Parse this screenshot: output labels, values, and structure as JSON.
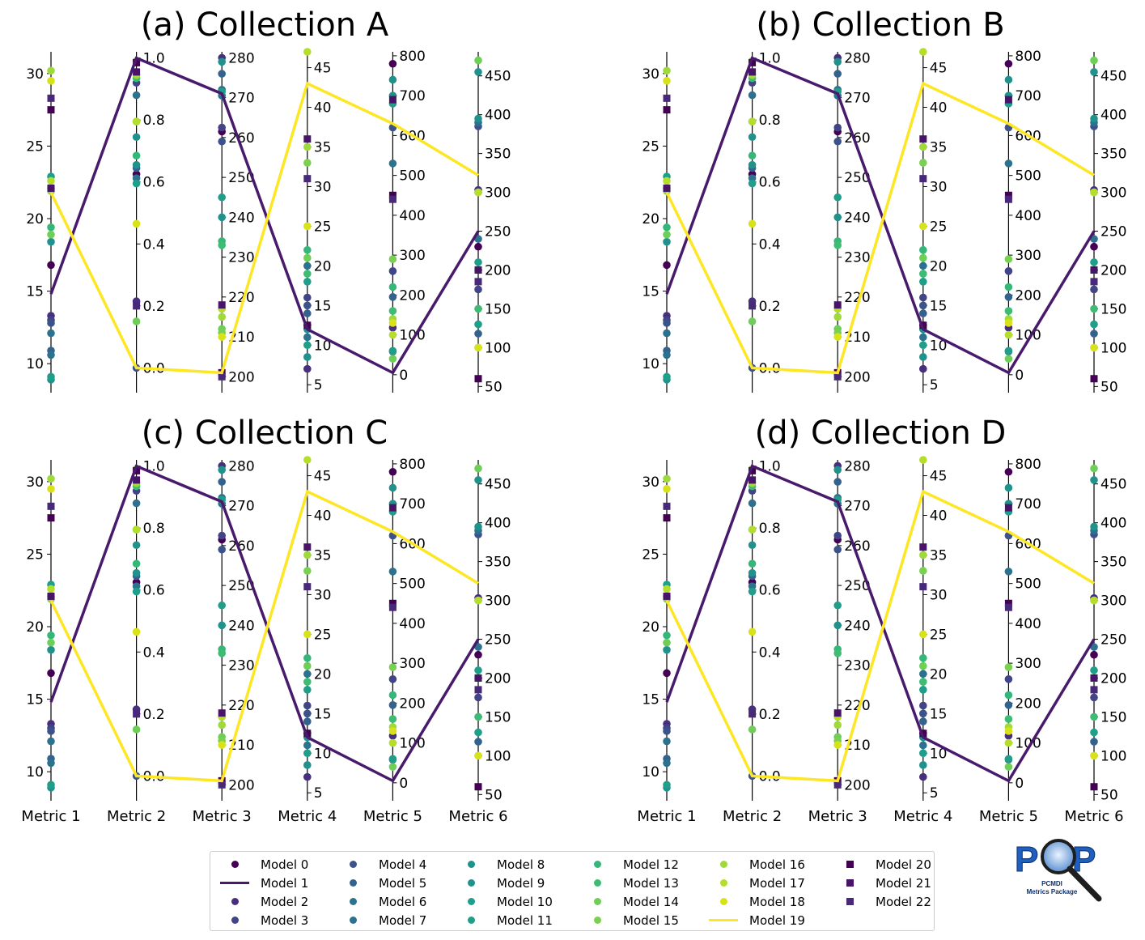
{
  "chart_data": {
    "type": "parallel_coordinates",
    "layout": "2x2 grid of panels",
    "metrics": [
      "Metric 1",
      "Metric 2",
      "Metric 3",
      "Metric 4",
      "Metric 5",
      "Metric 6"
    ],
    "axes": [
      {
        "metric": "Metric 1",
        "ylim": [
          8,
          31.5
        ],
        "ticks": [
          10,
          15,
          20,
          25,
          30
        ],
        "tick_side": "left"
      },
      {
        "metric": "Metric 2",
        "ylim": [
          -0.08,
          1.02
        ],
        "ticks": [
          0.0,
          0.2,
          0.4,
          0.6,
          0.8,
          1.0
        ],
        "tick_side": "right"
      },
      {
        "metric": "Metric 3",
        "ylim": [
          196,
          281.5
        ],
        "ticks": [
          200,
          210,
          220,
          230,
          240,
          250,
          260,
          270,
          280
        ],
        "tick_side": "right"
      },
      {
        "metric": "Metric 4",
        "ylim": [
          4,
          47
        ],
        "ticks": [
          5,
          10,
          15,
          20,
          25,
          30,
          35,
          40,
          45
        ],
        "tick_side": "right"
      },
      {
        "metric": "Metric 5",
        "ylim": [
          -45,
          810
        ],
        "ticks": [
          0,
          100,
          200,
          300,
          400,
          500,
          600,
          700,
          800
        ],
        "tick_side": "right"
      },
      {
        "metric": "Metric 6",
        "ylim": [
          42,
          481
        ],
        "ticks": [
          50,
          100,
          150,
          200,
          250,
          300,
          350,
          400,
          450
        ],
        "tick_side": "right"
      }
    ],
    "panels": [
      {
        "title": "(a) Collection A"
      },
      {
        "title": "(b) Collection B"
      },
      {
        "title": "(c) Collection C"
      },
      {
        "title": "(d) Collection D"
      }
    ],
    "series": [
      {
        "name": "Model 0",
        "marker": "circle",
        "color": "#440154",
        "values": [
          16.8,
          0.625,
          261.5,
          12.5,
          780,
          230
        ]
      },
      {
        "name": "Model 1",
        "marker": "line",
        "color": "#481a6c",
        "values": [
          14.8,
          1.0,
          271.0,
          12.0,
          5,
          250
        ]
      },
      {
        "name": "Model 2",
        "marker": "circle",
        "color": "#472f7d",
        "values": [
          13.3,
          0.215,
          280.0,
          7.0,
          118,
          303
        ]
      },
      {
        "name": "Model 3",
        "marker": "circle",
        "color": "#414487",
        "values": [
          13.0,
          0.92,
          262.5,
          16.0,
          260,
          175
        ]
      },
      {
        "name": "Model 4",
        "marker": "circle",
        "color": "#3b528b",
        "values": [
          12.8,
          0.0,
          259.0,
          15.0,
          620,
          385
        ]
      },
      {
        "name": "Model 5",
        "marker": "circle",
        "color": "#33638d",
        "values": [
          10.9,
          0.645,
          276.0,
          14.0,
          195,
          118
        ]
      },
      {
        "name": "Model 6",
        "marker": "circle",
        "color": "#2c728e",
        "values": [
          10.6,
          0.612,
          270.5,
          11.0,
          530,
          240
        ]
      },
      {
        "name": "Model 7",
        "marker": "circle",
        "color": "#2c728e",
        "values": [
          12.1,
          0.88,
          272.0,
          20.0,
          58,
          390
        ]
      },
      {
        "name": "Model 8",
        "marker": "circle",
        "color": "#21918c",
        "values": [
          18.4,
          0.655,
          279.0,
          8.5,
          740,
          455
        ]
      },
      {
        "name": "Model 9",
        "marker": "circle",
        "color": "#21918c",
        "values": [
          8.9,
          0.745,
          240.0,
          12.0,
          700,
          395
        ]
      },
      {
        "name": "Model 10",
        "marker": "circle",
        "color": "#1f9e89",
        "values": [
          22.9,
          0.595,
          271.5,
          10.0,
          60,
          130
        ]
      },
      {
        "name": "Model 11",
        "marker": "circle",
        "color": "#1f9e89",
        "values": [
          9.1,
          0.795,
          245.0,
          18.0,
          680,
          210
        ]
      },
      {
        "name": "Model 12",
        "marker": "circle",
        "color": "#35b779",
        "values": [
          19.4,
          0.685,
          234.0,
          22.0,
          220,
          200
        ]
      },
      {
        "name": "Model 13",
        "marker": "circle",
        "color": "#3fbc73",
        "values": [
          22.1,
          0.935,
          233.0,
          19.0,
          160,
          150
        ]
      },
      {
        "name": "Model 14",
        "marker": "circle",
        "color": "#6ece58",
        "values": [
          18.9,
          0.15,
          212.0,
          21.0,
          40,
          470
        ]
      },
      {
        "name": "Model 15",
        "marker": "circle",
        "color": "#7ad151",
        "values": [
          21.9,
          0.99,
          211.0,
          33.0,
          290,
          300
        ]
      },
      {
        "name": "Model 16",
        "marker": "circle",
        "color": "#9fda3a",
        "values": [
          30.2,
          0.945,
          215.0,
          35.0,
          140,
          100
        ]
      },
      {
        "name": "Model 17",
        "marker": "circle",
        "color": "#b5de2b",
        "values": [
          22.6,
          0.795,
          217.0,
          47.0,
          100,
          300
        ]
      },
      {
        "name": "Model 18",
        "marker": "circle",
        "color": "#d8e219",
        "values": [
          29.5,
          0.465,
          210.0,
          25.0,
          130,
          100
        ]
      },
      {
        "name": "Model 19",
        "marker": "line",
        "color": "#fde725",
        "values": [
          21.8,
          0.0,
          201.0,
          43.0,
          630,
          322
        ]
      },
      {
        "name": "Model 20",
        "marker": "square",
        "color": "#440154",
        "values": [
          27.5,
          0.985,
          201.0,
          12.5,
          450,
          60
        ]
      },
      {
        "name": "Model 21",
        "marker": "square",
        "color": "#481467",
        "values": [
          22.1,
          0.955,
          218.0,
          36.0,
          690,
          200
        ]
      },
      {
        "name": "Model 22",
        "marker": "square",
        "color": "#482878",
        "values": [
          28.3,
          0.2,
          200.0,
          31.0,
          440,
          185
        ]
      }
    ],
    "legend_placement": "bottom-center",
    "grid": false
  },
  "logo": {
    "text": "PMP",
    "subtitle_line1": "PCMDI",
    "subtitle_line2": "Metrics Package"
  }
}
